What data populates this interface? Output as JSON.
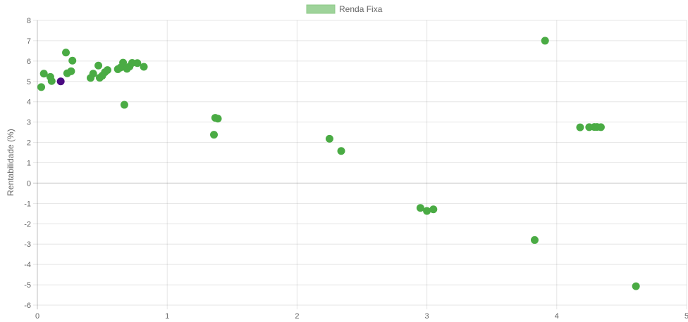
{
  "chart_data": {
    "type": "scatter",
    "title": "",
    "xlabel": "",
    "ylabel": "Rentabilidade (%)",
    "xlim": [
      0,
      5
    ],
    "ylim": [
      -6,
      8
    ],
    "x_ticks": [
      "0",
      "1",
      "2",
      "3",
      "4",
      "5"
    ],
    "y_ticks": [
      "8",
      "7",
      "6",
      "5",
      "4",
      "3",
      "2",
      "1",
      "0",
      "-1",
      "-2",
      "-3",
      "-4",
      "-5",
      "-6"
    ],
    "grid": true,
    "legend_position": "top-center",
    "legend": [
      {
        "label": "Renda Fixa",
        "color": "#9ed39a"
      }
    ],
    "series": [
      {
        "name": "Renda Fixa",
        "color": "#4aab44",
        "points": [
          {
            "x": 0.03,
            "y": 4.72
          },
          {
            "x": 0.05,
            "y": 5.38
          },
          {
            "x": 0.1,
            "y": 5.22
          },
          {
            "x": 0.11,
            "y": 5.02
          },
          {
            "x": 0.22,
            "y": 6.42
          },
          {
            "x": 0.23,
            "y": 5.4
          },
          {
            "x": 0.26,
            "y": 5.5
          },
          {
            "x": 0.27,
            "y": 6.02
          },
          {
            "x": 0.41,
            "y": 5.17
          },
          {
            "x": 0.43,
            "y": 5.38
          },
          {
            "x": 0.47,
            "y": 5.78
          },
          {
            "x": 0.48,
            "y": 5.18
          },
          {
            "x": 0.5,
            "y": 5.28
          },
          {
            "x": 0.52,
            "y": 5.45
          },
          {
            "x": 0.54,
            "y": 5.56
          },
          {
            "x": 0.62,
            "y": 5.6
          },
          {
            "x": 0.64,
            "y": 5.68
          },
          {
            "x": 0.66,
            "y": 5.92
          },
          {
            "x": 0.67,
            "y": 3.85
          },
          {
            "x": 0.69,
            "y": 5.62
          },
          {
            "x": 0.71,
            "y": 5.73
          },
          {
            "x": 0.73,
            "y": 5.91
          },
          {
            "x": 0.77,
            "y": 5.9
          },
          {
            "x": 0.82,
            "y": 5.72
          },
          {
            "x": 1.36,
            "y": 2.38
          },
          {
            "x": 1.37,
            "y": 3.21
          },
          {
            "x": 1.39,
            "y": 3.17
          },
          {
            "x": 2.25,
            "y": 2.18
          },
          {
            "x": 2.34,
            "y": 1.58
          },
          {
            "x": 2.95,
            "y": -1.22
          },
          {
            "x": 3.0,
            "y": -1.37
          },
          {
            "x": 3.05,
            "y": -1.29
          },
          {
            "x": 3.83,
            "y": -2.8
          },
          {
            "x": 3.91,
            "y": 7.0
          },
          {
            "x": 4.18,
            "y": 2.74
          },
          {
            "x": 4.25,
            "y": 2.75
          },
          {
            "x": 4.29,
            "y": 2.76
          },
          {
            "x": 4.31,
            "y": 2.76
          },
          {
            "x": 4.34,
            "y": 2.75
          },
          {
            "x": 4.61,
            "y": -5.07
          }
        ]
      },
      {
        "name": "",
        "color": "#4b0a82",
        "points": [
          {
            "x": 0.18,
            "y": 5.0
          }
        ]
      }
    ]
  }
}
